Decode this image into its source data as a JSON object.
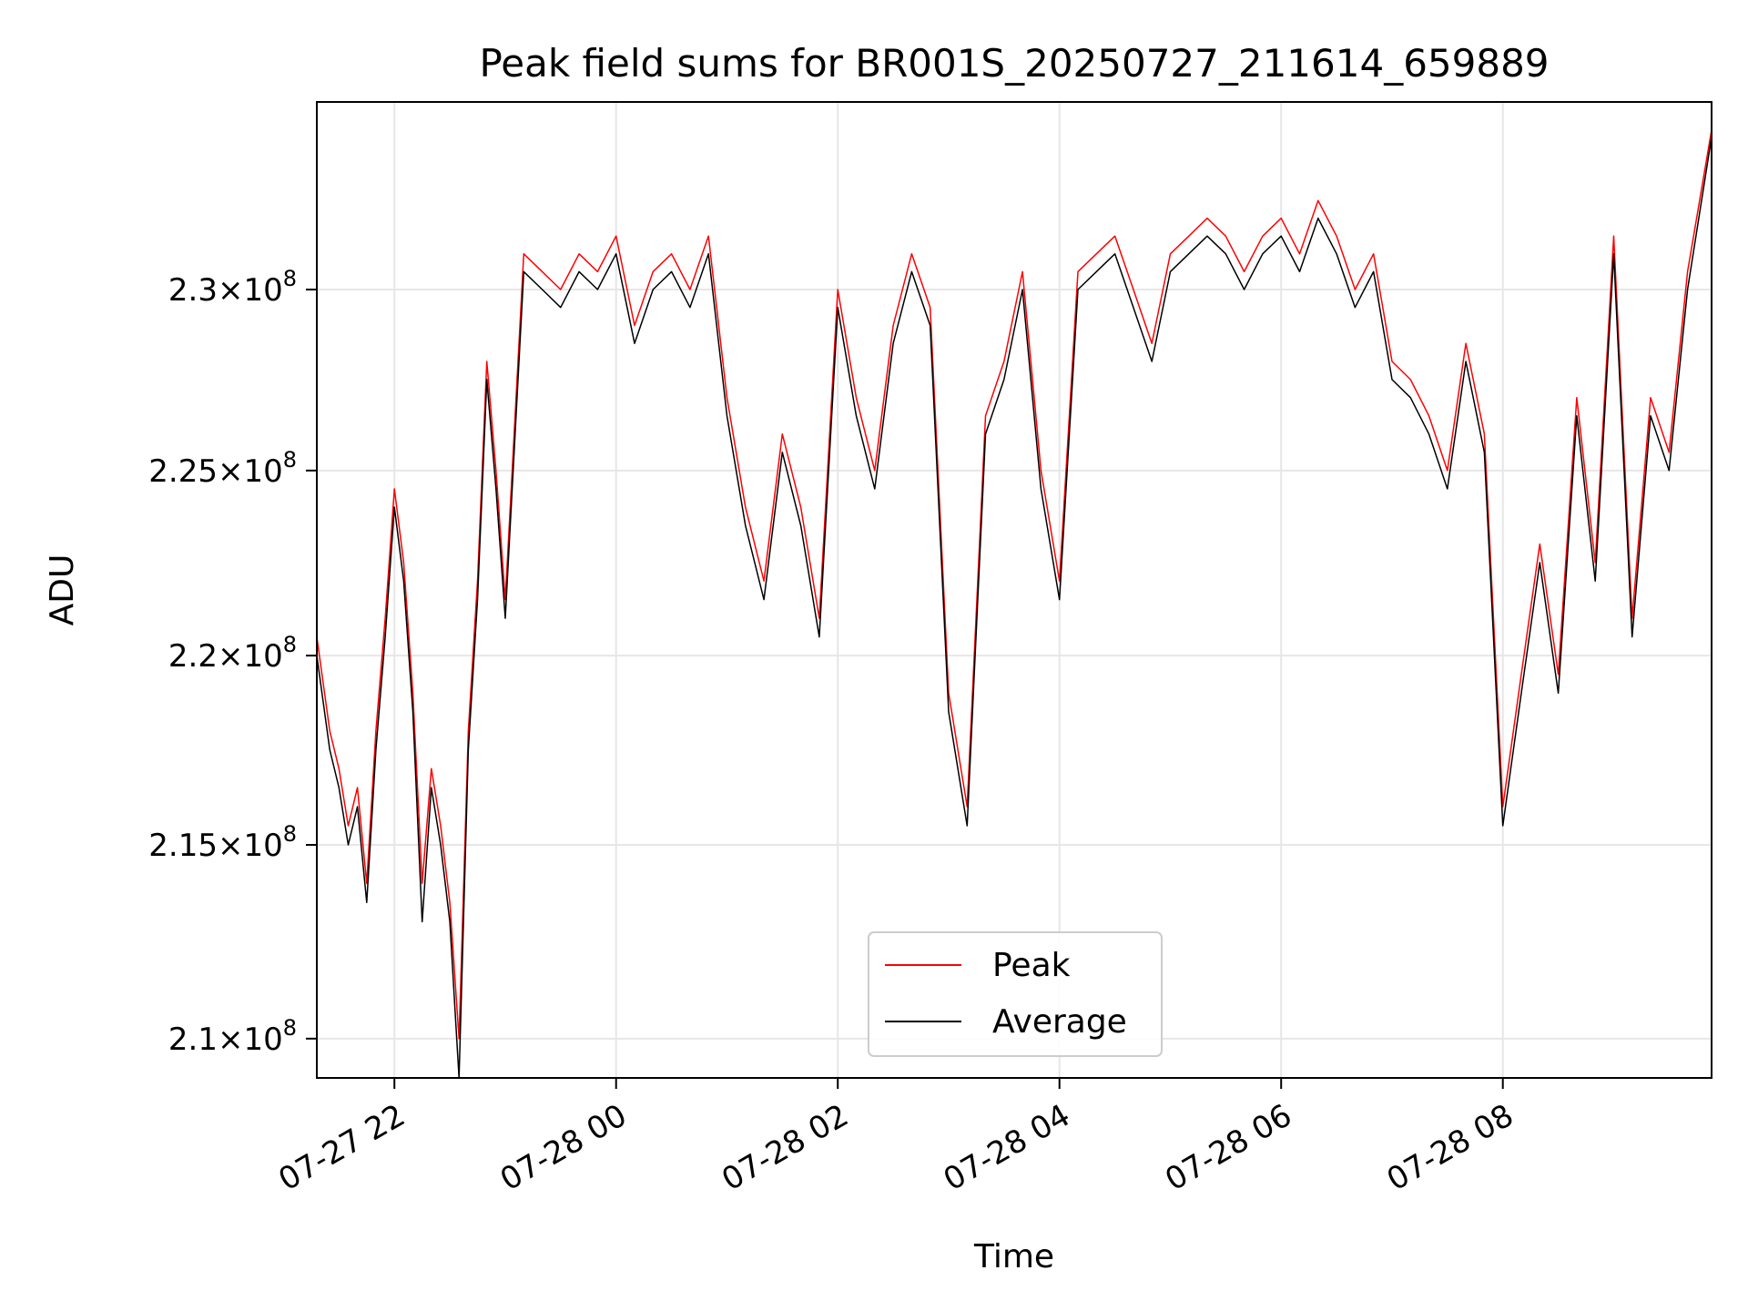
{
  "chart_data": {
    "type": "line",
    "title": "Peak field sums for BR001S_20250727_211614_659889",
    "xlabel": "Time",
    "ylabel": "ADU",
    "yscale": "log",
    "ylim": [
      209000000,
      235300000
    ],
    "xlim": [
      "2025-07-27 21:18",
      "2025-07-28 09:53"
    ],
    "grid": true,
    "legend_position": "bottom-center",
    "x_ticks": [
      {
        "value": "2025-07-27 22:00",
        "label": "07-27 22"
      },
      {
        "value": "2025-07-28 00:00",
        "label": "07-28 00"
      },
      {
        "value": "2025-07-28 02:00",
        "label": "07-28 02"
      },
      {
        "value": "2025-07-28 04:00",
        "label": "07-28 04"
      },
      {
        "value": "2025-07-28 06:00",
        "label": "07-28 06"
      },
      {
        "value": "2025-07-28 08:00",
        "label": "07-28 08"
      }
    ],
    "y_ticks": [
      {
        "value": 210000000,
        "mantissa": "2.1",
        "exponent": "8"
      },
      {
        "value": 215000000,
        "mantissa": "2.15",
        "exponent": "8"
      },
      {
        "value": 220000000,
        "mantissa": "2.2",
        "exponent": "8"
      },
      {
        "value": 225000000,
        "mantissa": "2.25",
        "exponent": "8"
      },
      {
        "value": 230000000,
        "mantissa": "2.3",
        "exponent": "8"
      }
    ],
    "tick_times": "×10",
    "series": [
      {
        "name": "Peak",
        "color": "#ff0000",
        "x": [
          "2025-07-27 21:18",
          "2025-07-27 21:25",
          "2025-07-27 21:30",
          "2025-07-27 21:35",
          "2025-07-27 21:40",
          "2025-07-27 21:45",
          "2025-07-27 21:50",
          "2025-07-27 21:55",
          "2025-07-27 22:00",
          "2025-07-27 22:05",
          "2025-07-27 22:10",
          "2025-07-27 22:15",
          "2025-07-27 22:20",
          "2025-07-27 22:25",
          "2025-07-27 22:30",
          "2025-07-27 22:35",
          "2025-07-27 22:40",
          "2025-07-27 22:45",
          "2025-07-27 22:50",
          "2025-07-27 22:55",
          "2025-07-27 23:00",
          "2025-07-27 23:10",
          "2025-07-27 23:20",
          "2025-07-27 23:30",
          "2025-07-27 23:40",
          "2025-07-27 23:50",
          "2025-07-28 00:00",
          "2025-07-28 00:10",
          "2025-07-28 00:20",
          "2025-07-28 00:30",
          "2025-07-28 00:40",
          "2025-07-28 00:50",
          "2025-07-28 01:00",
          "2025-07-28 01:10",
          "2025-07-28 01:20",
          "2025-07-28 01:30",
          "2025-07-28 01:40",
          "2025-07-28 01:50",
          "2025-07-28 02:00",
          "2025-07-28 02:10",
          "2025-07-28 02:20",
          "2025-07-28 02:30",
          "2025-07-28 02:40",
          "2025-07-28 02:50",
          "2025-07-28 03:00",
          "2025-07-28 03:10",
          "2025-07-28 03:20",
          "2025-07-28 03:30",
          "2025-07-28 03:40",
          "2025-07-28 03:50",
          "2025-07-28 04:00",
          "2025-07-28 04:10",
          "2025-07-28 04:20",
          "2025-07-28 04:30",
          "2025-07-28 04:40",
          "2025-07-28 04:50",
          "2025-07-28 05:00",
          "2025-07-28 05:10",
          "2025-07-28 05:20",
          "2025-07-28 05:30",
          "2025-07-28 05:40",
          "2025-07-28 05:50",
          "2025-07-28 06:00",
          "2025-07-28 06:10",
          "2025-07-28 06:20",
          "2025-07-28 06:30",
          "2025-07-28 06:40",
          "2025-07-28 06:50",
          "2025-07-28 07:00",
          "2025-07-28 07:10",
          "2025-07-28 07:20",
          "2025-07-28 07:30",
          "2025-07-28 07:40",
          "2025-07-28 07:50",
          "2025-07-28 08:00",
          "2025-07-28 08:10",
          "2025-07-28 08:20",
          "2025-07-28 08:30",
          "2025-07-28 08:40",
          "2025-07-28 08:50",
          "2025-07-28 09:00",
          "2025-07-28 09:10",
          "2025-07-28 09:20",
          "2025-07-28 09:30",
          "2025-07-28 09:40",
          "2025-07-28 09:53"
        ],
        "values": [
          220500000,
          218000000,
          217000000,
          215500000,
          216500000,
          214000000,
          218000000,
          221000000,
          224500000,
          222500000,
          219000000,
          214000000,
          217000000,
          215500000,
          213500000,
          210000000,
          218000000,
          222000000,
          228000000,
          225000000,
          221500000,
          231000000,
          230500000,
          230000000,
          231000000,
          230500000,
          231500000,
          229000000,
          230500000,
          231000000,
          230000000,
          231500000,
          227000000,
          224000000,
          222000000,
          226000000,
          224000000,
          221000000,
          230000000,
          227000000,
          225000000,
          229000000,
          231000000,
          229500000,
          219000000,
          216000000,
          226500000,
          228000000,
          230500000,
          225000000,
          222000000,
          230500000,
          231000000,
          231500000,
          230000000,
          228500000,
          231000000,
          231500000,
          232000000,
          231500000,
          230500000,
          231500000,
          232000000,
          231000000,
          232500000,
          231500000,
          230000000,
          231000000,
          228000000,
          227500000,
          226500000,
          225000000,
          228500000,
          226000000,
          216000000,
          219500000,
          223000000,
          219500000,
          227000000,
          222500000,
          231500000,
          221000000,
          227000000,
          225500000,
          230500000,
          234500000
        ]
      },
      {
        "name": "Average",
        "color": "#000000",
        "x": [
          "2025-07-27 21:18",
          "2025-07-27 21:25",
          "2025-07-27 21:30",
          "2025-07-27 21:35",
          "2025-07-27 21:40",
          "2025-07-27 21:45",
          "2025-07-27 21:50",
          "2025-07-27 21:55",
          "2025-07-27 22:00",
          "2025-07-27 22:05",
          "2025-07-27 22:10",
          "2025-07-27 22:15",
          "2025-07-27 22:20",
          "2025-07-27 22:25",
          "2025-07-27 22:30",
          "2025-07-27 22:35",
          "2025-07-27 22:40",
          "2025-07-27 22:45",
          "2025-07-27 22:50",
          "2025-07-27 22:55",
          "2025-07-27 23:00",
          "2025-07-27 23:10",
          "2025-07-27 23:20",
          "2025-07-27 23:30",
          "2025-07-27 23:40",
          "2025-07-27 23:50",
          "2025-07-28 00:00",
          "2025-07-28 00:10",
          "2025-07-28 00:20",
          "2025-07-28 00:30",
          "2025-07-28 00:40",
          "2025-07-28 00:50",
          "2025-07-28 01:00",
          "2025-07-28 01:10",
          "2025-07-28 01:20",
          "2025-07-28 01:30",
          "2025-07-28 01:40",
          "2025-07-28 01:50",
          "2025-07-28 02:00",
          "2025-07-28 02:10",
          "2025-07-28 02:20",
          "2025-07-28 02:30",
          "2025-07-28 02:40",
          "2025-07-28 02:50",
          "2025-07-28 03:00",
          "2025-07-28 03:10",
          "2025-07-28 03:20",
          "2025-07-28 03:30",
          "2025-07-28 03:40",
          "2025-07-28 03:50",
          "2025-07-28 04:00",
          "2025-07-28 04:10",
          "2025-07-28 04:20",
          "2025-07-28 04:30",
          "2025-07-28 04:40",
          "2025-07-28 04:50",
          "2025-07-28 05:00",
          "2025-07-28 05:10",
          "2025-07-28 05:20",
          "2025-07-28 05:30",
          "2025-07-28 05:40",
          "2025-07-28 05:50",
          "2025-07-28 06:00",
          "2025-07-28 06:10",
          "2025-07-28 06:20",
          "2025-07-28 06:30",
          "2025-07-28 06:40",
          "2025-07-28 06:50",
          "2025-07-28 07:00",
          "2025-07-28 07:10",
          "2025-07-28 07:20",
          "2025-07-28 07:30",
          "2025-07-28 07:40",
          "2025-07-28 07:50",
          "2025-07-28 08:00",
          "2025-07-28 08:10",
          "2025-07-28 08:20",
          "2025-07-28 08:30",
          "2025-07-28 08:40",
          "2025-07-28 08:50",
          "2025-07-28 09:00",
          "2025-07-28 09:10",
          "2025-07-28 09:20",
          "2025-07-28 09:30",
          "2025-07-28 09:40",
          "2025-07-28 09:53"
        ],
        "values": [
          220000000,
          217500000,
          216500000,
          215000000,
          216000000,
          213500000,
          217500000,
          220500000,
          224000000,
          222000000,
          218500000,
          213000000,
          216500000,
          215000000,
          213000000,
          209000000,
          217500000,
          221500000,
          227500000,
          224500000,
          221000000,
          230500000,
          230000000,
          229500000,
          230500000,
          230000000,
          231000000,
          228500000,
          230000000,
          230500000,
          229500000,
          231000000,
          226500000,
          223500000,
          221500000,
          225500000,
          223500000,
          220500000,
          229500000,
          226500000,
          224500000,
          228500000,
          230500000,
          229000000,
          218500000,
          215500000,
          226000000,
          227500000,
          230000000,
          224500000,
          221500000,
          230000000,
          230500000,
          231000000,
          229500000,
          228000000,
          230500000,
          231000000,
          231500000,
          231000000,
          230000000,
          231000000,
          231500000,
          230500000,
          232000000,
          231000000,
          229500000,
          230500000,
          227500000,
          227000000,
          226000000,
          224500000,
          228000000,
          225500000,
          215500000,
          219000000,
          222500000,
          219000000,
          226500000,
          222000000,
          231000000,
          220500000,
          226500000,
          225000000,
          230000000,
          234300000
        ]
      }
    ]
  }
}
